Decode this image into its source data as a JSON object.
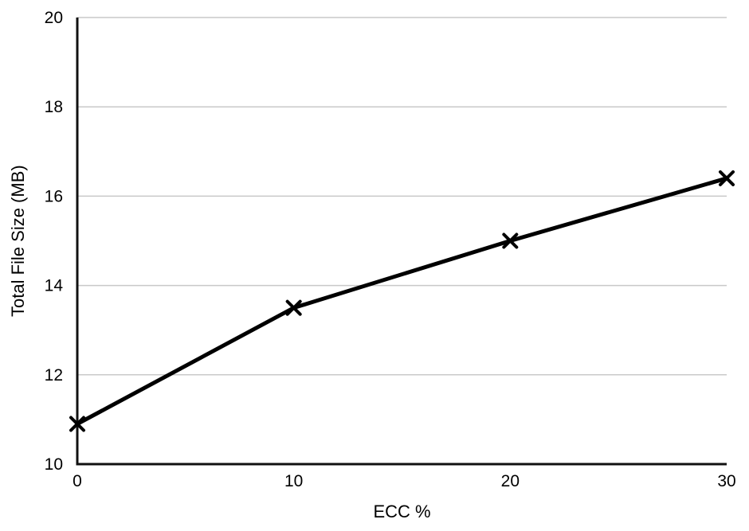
{
  "chart_data": {
    "type": "line",
    "title": "",
    "xlabel": "ECC %",
    "ylabel": "Total File Size (MB)",
    "x": [
      0,
      10,
      20,
      30
    ],
    "series": [
      {
        "name": "Total File Size (MB)",
        "values": [
          10.9,
          13.5,
          15.0,
          16.4
        ]
      }
    ],
    "xlim": [
      0,
      30
    ],
    "ylim": [
      10,
      20
    ],
    "xticks": [
      0,
      10,
      20,
      30
    ],
    "yticks": [
      10,
      12,
      14,
      16,
      18,
      20
    ],
    "grid": "horizontal",
    "legend_position": "none",
    "marker": "x",
    "colors": {
      "line": "#000000",
      "marker": "#000000",
      "grid": "#c9c9c9",
      "axis": "#111111",
      "text": "#000000",
      "background": "#ffffff"
    }
  }
}
